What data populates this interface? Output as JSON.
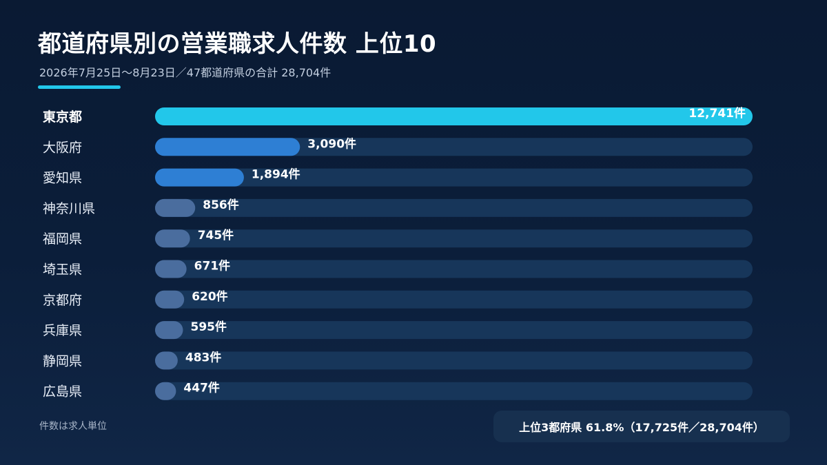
{
  "header": {
    "title": "都道府県別の営業職求人件数 上位10",
    "subtitle": "2026年7月25日〜8月23日／47都道府県の合計 28,704件"
  },
  "footer": {
    "note": "件数は求人単位",
    "summary": "上位3都府県 61.8%（17,725件／28,704件）"
  },
  "colors": {
    "accent": "#22c7ea",
    "bar_mid": "#2e7fd4",
    "bar_low": "#4a6d9e",
    "track": "#17365a"
  },
  "chart_data": {
    "type": "bar",
    "orientation": "horizontal",
    "categories": [
      "東京都",
      "大阪府",
      "愛知県",
      "神奈川県",
      "福岡県",
      "埼玉県",
      "京都府",
      "兵庫県",
      "静岡県",
      "広島県"
    ],
    "values": [
      12741,
      3090,
      1894,
      856,
      745,
      671,
      620,
      595,
      483,
      447
    ],
    "value_labels": [
      "12,741件",
      "3,090件",
      "1,894件",
      "856件",
      "745件",
      "671件",
      "620件",
      "595件",
      "483件",
      "447件"
    ],
    "xlim": [
      0,
      12741
    ],
    "grid": false,
    "legend": "none"
  }
}
